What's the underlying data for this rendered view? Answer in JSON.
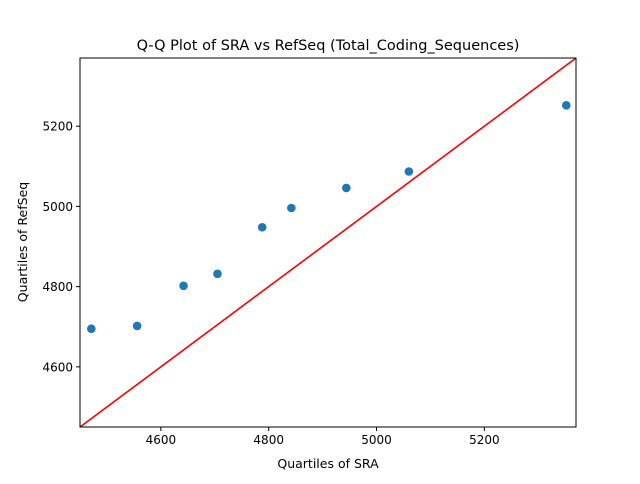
{
  "chart_data": {
    "type": "scatter",
    "title": "Q-Q Plot of SRA vs RefSeq (Total_Coding_Sequences)",
    "xlabel": "Quartiles of SRA",
    "ylabel": "Quartiles of RefSeq",
    "xlim": [
      4450,
      5370
    ],
    "ylim": [
      4450,
      5370
    ],
    "xticks": [
      "4600",
      "4800",
      "5000",
      "5200"
    ],
    "yticks": [
      "4600",
      "4800",
      "5000",
      "5200"
    ],
    "grid": false,
    "series": [
      {
        "points": [
          {
            "x": 4471,
            "y": 4695
          },
          {
            "x": 4556,
            "y": 4702
          },
          {
            "x": 4642,
            "y": 4802
          },
          {
            "x": 4705,
            "y": 4832
          },
          {
            "x": 4788,
            "y": 4948
          },
          {
            "x": 4842,
            "y": 4996
          },
          {
            "x": 4944,
            "y": 5046
          },
          {
            "x": 5060,
            "y": 5087
          },
          {
            "x": 5352,
            "y": 5252
          }
        ],
        "color": "#1f77b4"
      }
    ],
    "reference_line": {
      "type": "y=x",
      "color": "#ff0000"
    }
  }
}
